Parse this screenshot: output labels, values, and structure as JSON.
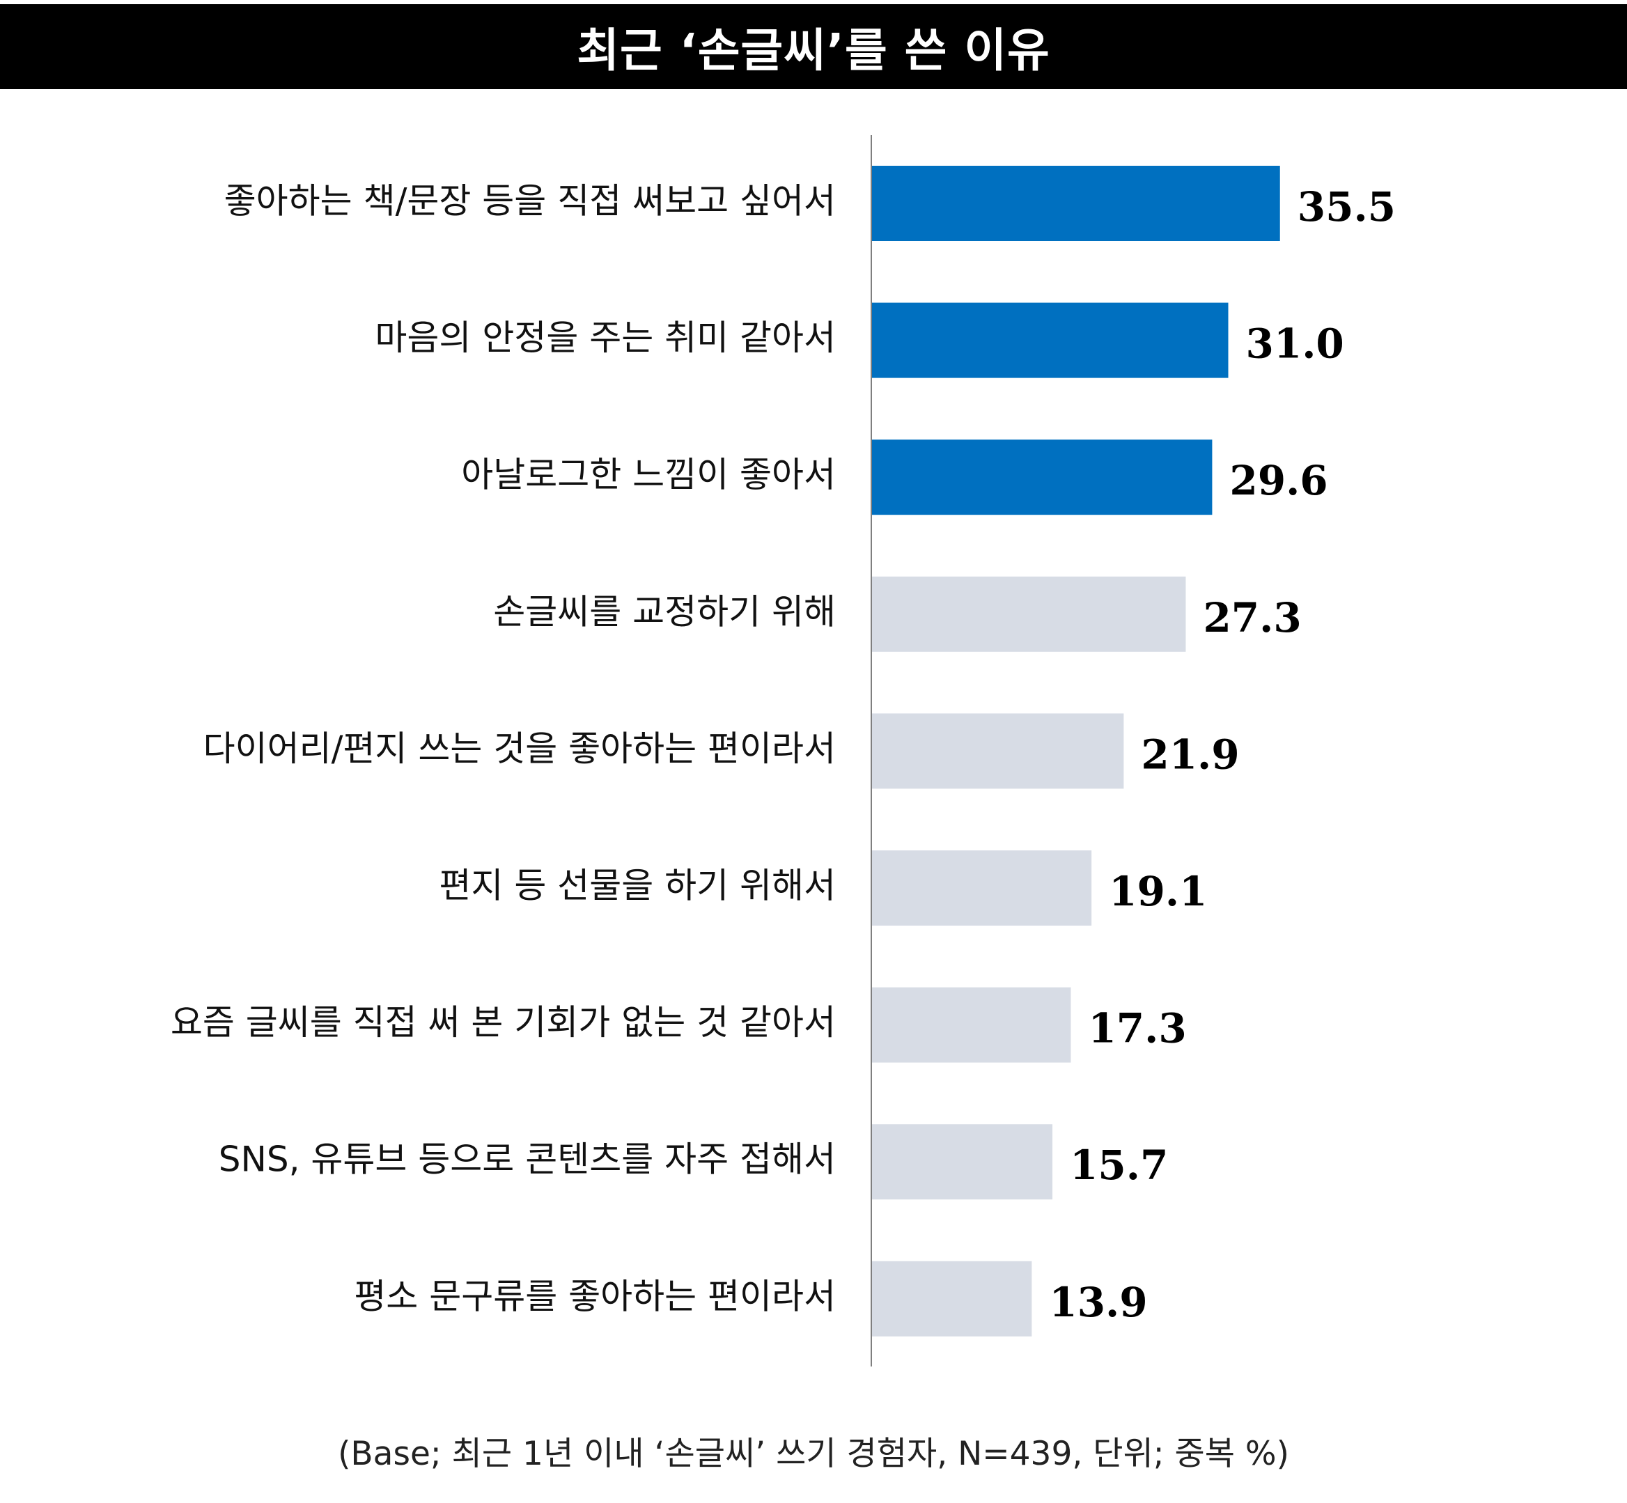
{
  "title": "최근 ‘손글씨’를 쓴 이유",
  "footnote": "(Base; 최근 1년 이내 ‘손글씨’ 쓰기 경험자, N=439, 단위; 중복 %)",
  "colors": {
    "highlight": "#0070C0",
    "normal": "#D7DCE5",
    "axis": "#7F7F7F"
  },
  "chart_data": {
    "type": "bar",
    "orientation": "horizontal",
    "categories": [
      "좋아하는 책/문장 등을 직접 써보고 싶어서",
      "마음의 안정을 주는 취미 같아서",
      "아날로그한 느낌이 좋아서",
      "손글씨를 교정하기 위해",
      "다이어리/편지 쓰는 것을 좋아하는 편이라서",
      "편지 등 선물을 하기 위해서",
      "요즘 글씨를 직접 써 본 기회가 없는 것 같아서",
      "SNS, 유튜브 등으로 콘텐츠를 자주 접해서",
      "평소 문구류를 좋아하는 편이라서"
    ],
    "values": [
      35.5,
      31.0,
      29.6,
      27.3,
      21.9,
      19.1,
      17.3,
      15.7,
      13.9
    ],
    "value_labels": [
      "35.5",
      "31.0",
      "29.6",
      "27.3",
      "21.9",
      "19.1",
      "17.3",
      "15.7",
      "13.9"
    ],
    "highlighted_count": 3,
    "xlim": [
      0,
      60
    ],
    "grid": false,
    "legend": "none"
  }
}
